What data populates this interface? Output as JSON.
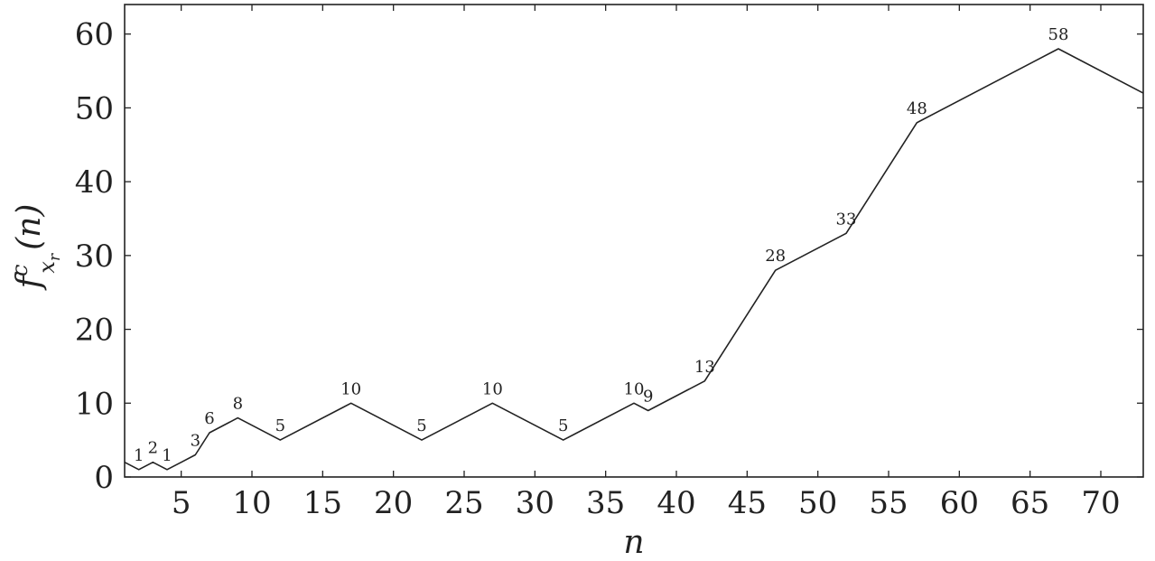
{
  "chart_data": {
    "type": "line",
    "xlabel": "n",
    "ylabel": {
      "base": "f",
      "sup": "c",
      "sub_main": "x",
      "sub_sub": "r",
      "arg": "(n)"
    },
    "xlim": [
      1,
      73
    ],
    "ylim": [
      0,
      64
    ],
    "xticks": [
      5,
      10,
      15,
      20,
      25,
      30,
      35,
      40,
      45,
      50,
      55,
      60,
      65,
      70
    ],
    "yticks": [
      0,
      10,
      20,
      30,
      40,
      50,
      60
    ],
    "grid": false,
    "legend": "none",
    "line_color": "#222222",
    "x": [
      1,
      2,
      3,
      4,
      5,
      6,
      7,
      9,
      12,
      17,
      22,
      27,
      32,
      37,
      38,
      42,
      47,
      52,
      57,
      67,
      73
    ],
    "y": [
      2,
      1,
      2,
      1,
      2,
      3,
      6,
      8,
      5,
      10,
      5,
      10,
      5,
      10,
      9,
      13,
      28,
      33,
      48,
      58,
      52
    ],
    "point_labels": [
      "",
      "1",
      "2",
      "1",
      "",
      "3",
      "6",
      "8",
      "5",
      "10",
      "5",
      "10",
      "5",
      "10",
      "9",
      "13",
      "28",
      "33",
      "48",
      "58",
      ""
    ]
  }
}
